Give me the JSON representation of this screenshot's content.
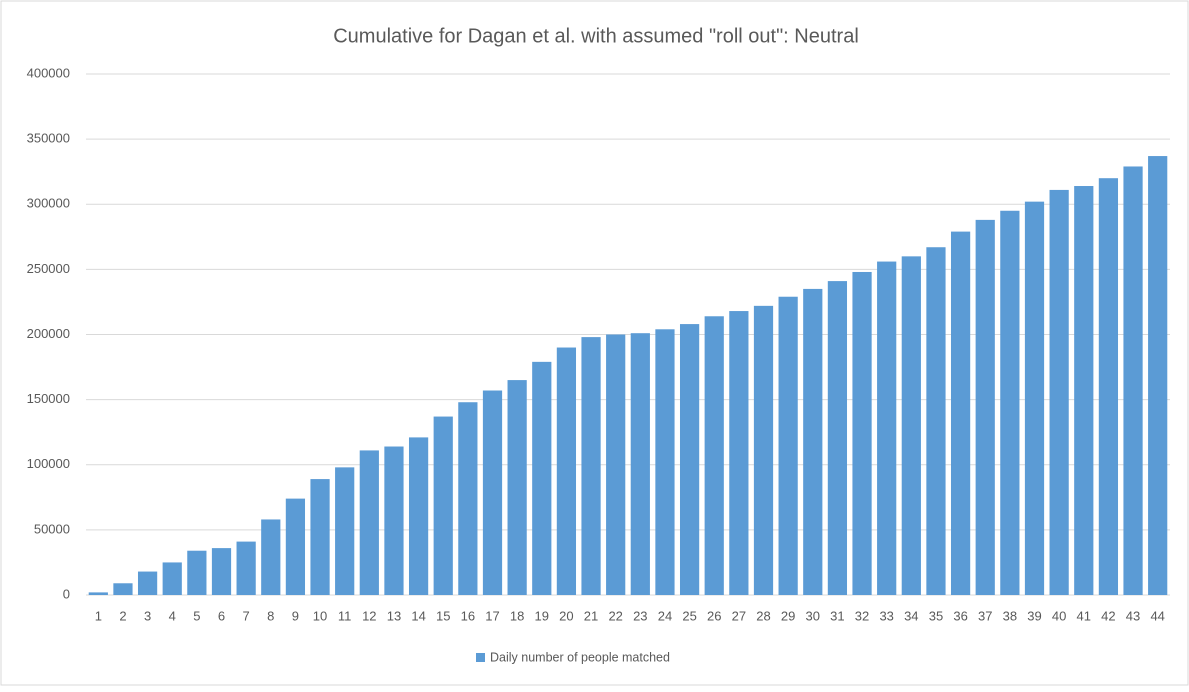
{
  "chart_data": {
    "type": "bar",
    "title": "Cumulative for Dagan et al. with assumed \"roll out\": Neutral",
    "categories": [
      "1",
      "2",
      "3",
      "4",
      "5",
      "6",
      "7",
      "8",
      "9",
      "10",
      "11",
      "12",
      "13",
      "14",
      "15",
      "16",
      "17",
      "18",
      "19",
      "20",
      "21",
      "22",
      "23",
      "24",
      "25",
      "26",
      "27",
      "28",
      "29",
      "30",
      "31",
      "32",
      "33",
      "34",
      "35",
      "36",
      "37",
      "38",
      "39",
      "40",
      "41",
      "42",
      "43",
      "44"
    ],
    "series": [
      {
        "name": "Daily number of people matched",
        "color": "#5b9bd5",
        "values": [
          2000,
          9000,
          18000,
          25000,
          34000,
          36000,
          41000,
          58000,
          74000,
          89000,
          98000,
          111000,
          114000,
          121000,
          137000,
          148000,
          157000,
          165000,
          179000,
          190000,
          198000,
          200000,
          201000,
          204000,
          208000,
          214000,
          218000,
          222000,
          229000,
          235000,
          241000,
          248000,
          256000,
          260000,
          267000,
          279000,
          288000,
          295000,
          302000,
          311000,
          314000,
          320000,
          329000,
          337000
        ]
      }
    ],
    "ylim": [
      0,
      400000
    ],
    "yticks": [
      0,
      50000,
      100000,
      150000,
      200000,
      250000,
      300000,
      350000,
      400000
    ],
    "grid": true,
    "legend": "bottom"
  }
}
